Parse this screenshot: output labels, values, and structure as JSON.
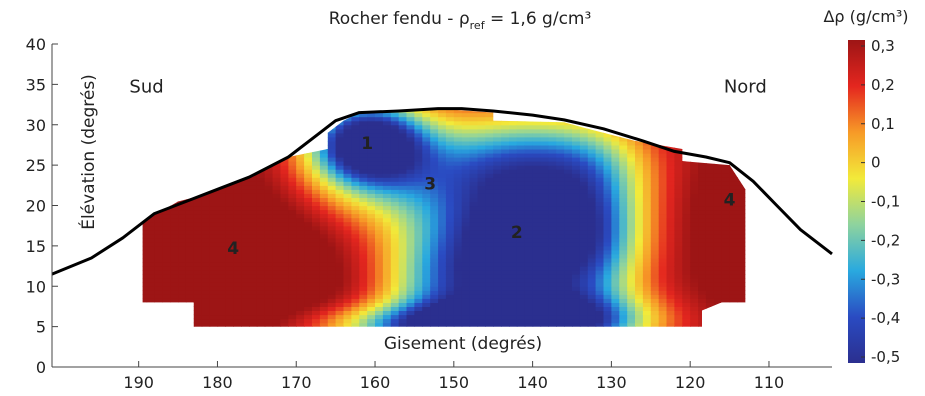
{
  "chart_data": {
    "type": "heatmap",
    "title_prefix": "Rocher fendu - ρ",
    "title_sub": "ref",
    "title_suffix": " = 1,6 g/cm³",
    "xlabel": "Gisement (degrés)",
    "ylabel": "Élévation (degrés)",
    "xlim": [
      201,
      102
    ],
    "ylim": [
      0,
      40
    ],
    "xticks": [
      "190",
      "180",
      "170",
      "160",
      "150",
      "140",
      "130",
      "120",
      "110"
    ],
    "yticks": [
      "0",
      "5",
      "10",
      "15",
      "20",
      "25",
      "30",
      "35",
      "40"
    ],
    "colorbar": {
      "label": "Δρ (g/cm³)",
      "range": [
        -0.5,
        0.3
      ],
      "ticks": [
        "0,3",
        "0,2",
        "0,1",
        "0",
        "-0,1",
        "-0,2",
        "-0,3",
        "-0,4",
        "-0,5"
      ],
      "colors": [
        "#2b2f8f",
        "#2a4bc2",
        "#29a9df",
        "#8ed39e",
        "#f2ea3a",
        "#f79a27",
        "#e4261f",
        "#9d1515"
      ]
    },
    "annotations": [
      {
        "text": "Sud",
        "x": 189,
        "y": 34
      },
      {
        "text": "Nord",
        "x": 113,
        "y": 34
      },
      {
        "text": "1",
        "x": 161,
        "y": 27
      },
      {
        "text": "2",
        "x": 142,
        "y": 16
      },
      {
        "text": "3",
        "x": 153,
        "y": 22
      },
      {
        "text": "4",
        "x": 178,
        "y": 14
      },
      {
        "text": "4",
        "x": 115,
        "y": 20
      }
    ],
    "horizon_profile": [
      {
        "x": 201,
        "y": 11.5
      },
      {
        "x": 196,
        "y": 13.5
      },
      {
        "x": 192,
        "y": 16
      },
      {
        "x": 188,
        "y": 19
      },
      {
        "x": 184,
        "y": 20.5
      },
      {
        "x": 180,
        "y": 22
      },
      {
        "x": 176,
        "y": 23.5
      },
      {
        "x": 171,
        "y": 26
      },
      {
        "x": 167,
        "y": 29
      },
      {
        "x": 165,
        "y": 30.5
      },
      {
        "x": 162,
        "y": 31.5
      },
      {
        "x": 157,
        "y": 31.7
      },
      {
        "x": 152,
        "y": 32
      },
      {
        "x": 149,
        "y": 32
      },
      {
        "x": 145,
        "y": 31.7
      },
      {
        "x": 140,
        "y": 31.2
      },
      {
        "x": 136,
        "y": 30.6
      },
      {
        "x": 131,
        "y": 29.5
      },
      {
        "x": 126,
        "y": 28
      },
      {
        "x": 122,
        "y": 26.7
      },
      {
        "x": 118,
        "y": 26
      },
      {
        "x": 115,
        "y": 25.3
      },
      {
        "x": 112,
        "y": 23
      },
      {
        "x": 109,
        "y": 20
      },
      {
        "x": 106,
        "y": 17
      },
      {
        "x": 102,
        "y": 14
      }
    ],
    "model_region": [
      {
        "x": 189.5,
        "y": 8
      },
      {
        "x": 183,
        "y": 8
      },
      {
        "x": 183,
        "y": 5
      },
      {
        "x": 118.5,
        "y": 5
      },
      {
        "x": 118.5,
        "y": 7
      },
      {
        "x": 116,
        "y": 8
      },
      {
        "x": 113,
        "y": 8
      },
      {
        "x": 113,
        "y": 22
      },
      {
        "x": 115,
        "y": 25
      },
      {
        "x": 121,
        "y": 25.5
      },
      {
        "x": 121,
        "y": 27
      },
      {
        "x": 127,
        "y": 28
      },
      {
        "x": 133,
        "y": 29.5
      },
      {
        "x": 136,
        "y": 30.3
      },
      {
        "x": 145,
        "y": 30.5
      },
      {
        "x": 145,
        "y": 31.5
      },
      {
        "x": 152,
        "y": 32
      },
      {
        "x": 162,
        "y": 31.5
      },
      {
        "x": 164,
        "y": 30.5
      },
      {
        "x": 166,
        "y": 29
      },
      {
        "x": 166,
        "y": 27
      },
      {
        "x": 171,
        "y": 26
      },
      {
        "x": 176,
        "y": 23.5
      },
      {
        "x": 181,
        "y": 21.5
      },
      {
        "x": 185,
        "y": 20.5
      },
      {
        "x": 189.5,
        "y": 18
      }
    ],
    "field": {
      "background": 0.3,
      "anomalies": [
        {
          "x": 176,
          "y": 12,
          "sx": 9,
          "sy": 9,
          "a": 0.15
        },
        {
          "x": 114,
          "y": 19,
          "sx": 4,
          "sy": 8,
          "a": 0.1
        },
        {
          "x": 161,
          "y": 28,
          "sx": 5,
          "sy": 3.5,
          "a": -0.8
        },
        {
          "x": 142,
          "y": 15,
          "sx": 7,
          "sy": 8,
          "a": -0.82
        },
        {
          "x": 152,
          "y": 10,
          "sx": 6,
          "sy": 6,
          "a": -0.4
        },
        {
          "x": 132,
          "y": 17,
          "sx": 5,
          "sy": 7,
          "a": -0.5
        },
        {
          "x": 157,
          "y": 24,
          "sx": 9,
          "sy": 5,
          "a": -0.4
        },
        {
          "x": 138,
          "y": 26,
          "sx": 9,
          "sy": 4,
          "a": -0.3
        },
        {
          "x": 150,
          "y": 5,
          "sx": 12,
          "sy": 2,
          "a": -0.6
        },
        {
          "x": 135,
          "y": 6,
          "sx": 8,
          "sy": 2.5,
          "a": -0.4
        }
      ]
    }
  }
}
